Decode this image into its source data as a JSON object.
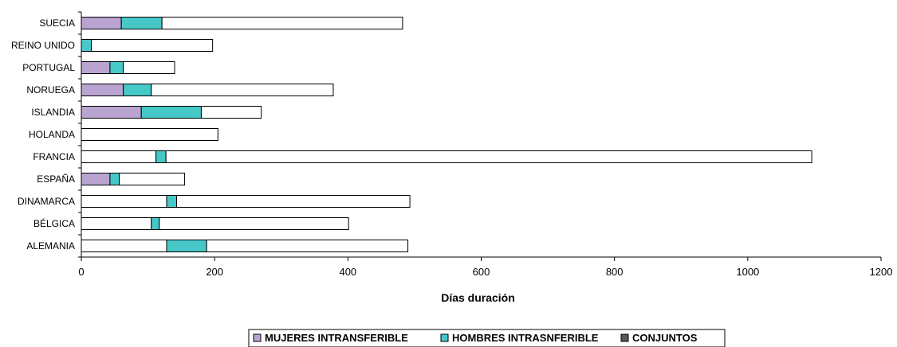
{
  "chart_data": {
    "type": "bar",
    "orientation": "horizontal",
    "stacked": true,
    "categories": [
      "SUECIA",
      "REINO UNIDO",
      "PORTUGAL",
      "NORUEGA",
      "ISLANDIA",
      "HOLANDA",
      "FRANCIA",
      "ESPAÑA",
      "DINAMARCA",
      "BÉLGICA",
      "ALEMANIA"
    ],
    "series": [
      {
        "name": "MUJERES INTRANSFERIBLE",
        "color": "#b9a3d1",
        "values": [
          60,
          0,
          43,
          63,
          90,
          0,
          0,
          43,
          0,
          0,
          0
        ]
      },
      {
        "name": "HOMBRES INTRASNFERIBLE",
        "color": "#46c8c8",
        "values": [
          61,
          15,
          20,
          42,
          90,
          0,
          15,
          14,
          15,
          12,
          60
        ]
      },
      {
        "name": "CONJUNTOS",
        "color": "#595959",
        "values": [
          0,
          0,
          0,
          0,
          0,
          0,
          0,
          0,
          0,
          0,
          0
        ]
      },
      {
        "name": "",
        "color": "#ffffff",
        "values": [
          361,
          182,
          77,
          273,
          90,
          205,
          969,
          98,
          350,
          284,
          302
        ]
      }
    ],
    "notes_stack_base": [
      0,
      0,
      0,
      0,
      0,
      0,
      112,
      0,
      128,
      105,
      128
    ],
    "xlabel": "Días duración",
    "xlim": [
      0,
      1200
    ],
    "xticks": [
      0,
      200,
      400,
      600,
      800,
      1000,
      1200
    ],
    "grid": false,
    "legend_position": "bottom"
  }
}
